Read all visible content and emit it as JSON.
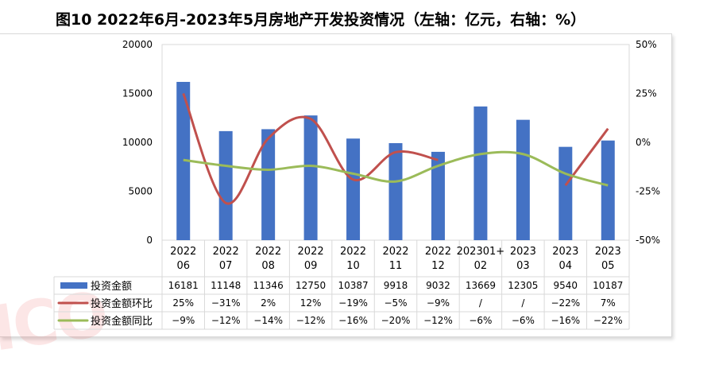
{
  "title": "图10  2022年6月-2023年5月房地产开发投资情况（左轴：亿元，右轴：%）",
  "watermark": "ICO",
  "colors": {
    "bar": "#4472C4",
    "mom": "#C0504D",
    "yoy": "#9BBB59",
    "grid": "#d9d9d9"
  },
  "chart_data": {
    "type": "bar",
    "categories": [
      [
        "2022",
        "06"
      ],
      [
        "2022",
        "07"
      ],
      [
        "2022",
        "08"
      ],
      [
        "2022",
        "09"
      ],
      [
        "2022",
        "10"
      ],
      [
        "2022",
        "11"
      ],
      [
        "2022",
        "12"
      ],
      [
        "202301+",
        "02"
      ],
      [
        "2023",
        "03"
      ],
      [
        "2023",
        "04"
      ],
      [
        "2023",
        "05"
      ]
    ],
    "left_axis": {
      "min": 0,
      "max": 20000,
      "ticks": [
        "0",
        "5000",
        "10000",
        "15000",
        "20000"
      ]
    },
    "right_axis": {
      "min": -50,
      "max": 50,
      "ticks": [
        "-50%",
        "-25%",
        "0%",
        "25%",
        "50%"
      ]
    },
    "series": [
      {
        "name": "投资金额",
        "type": "bar",
        "axis": "left",
        "values": [
          16181,
          11148,
          11346,
          12750,
          10387,
          9918,
          9032,
          13669,
          12305,
          9540,
          10187
        ],
        "labels": [
          "16181",
          "11148",
          "11346",
          "12750",
          "10387",
          "9918",
          "9032",
          "13669",
          "12305",
          "9540",
          "10187"
        ]
      },
      {
        "name": "投资金额环比",
        "type": "line",
        "axis": "right",
        "values": [
          25,
          -31,
          2,
          12,
          -19,
          -5,
          -9,
          null,
          null,
          -22,
          7
        ],
        "labels": [
          "25%",
          "−31%",
          "2%",
          "12%",
          "−19%",
          "−5%",
          "−9%",
          "/",
          "/",
          "−22%",
          "7%"
        ]
      },
      {
        "name": "投资金额同比",
        "type": "line",
        "axis": "right",
        "values": [
          -9,
          -12,
          -14,
          -12,
          -16,
          -20,
          -12,
          -6,
          -6,
          -16,
          -22
        ],
        "labels": [
          "−9%",
          "−12%",
          "−14%",
          "−12%",
          "−16%",
          "−20%",
          "−12%",
          "−6%",
          "−6%",
          "−16%",
          "−22%"
        ]
      }
    ]
  }
}
